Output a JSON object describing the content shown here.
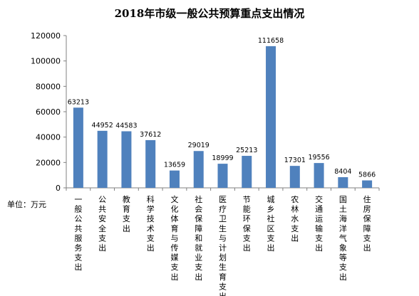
{
  "chart_data": {
    "type": "bar",
    "title": "2018年市级一般公共预算重点支出情况",
    "unit_label": "单位：万元",
    "ylim": [
      0,
      120000
    ],
    "yticks": [
      0,
      20000,
      40000,
      60000,
      80000,
      100000,
      120000
    ],
    "grid": false,
    "bar_color": "#4f81bd",
    "categories": [
      "一般公共服务支出",
      "公共安全支出",
      "教育支出",
      "科学技术支出",
      "文化体育与传媒支出",
      "社会保障和就业支出",
      "医疗卫生与计划生育支出",
      "节能环保支出",
      "城乡社区支出",
      "农林水支出",
      "交通运输支出",
      "国土海洋气象等支出",
      "住房保障支出"
    ],
    "values": [
      63213,
      44952,
      44583,
      37612,
      13659,
      29019,
      18999,
      25213,
      111658,
      17301,
      19556,
      8404,
      5866
    ]
  }
}
